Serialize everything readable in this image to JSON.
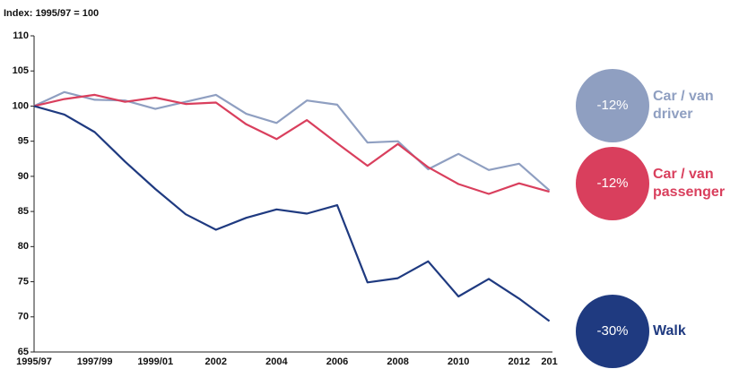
{
  "chart_data": {
    "type": "line",
    "y_axis_label": "Index: 1995/97 = 100",
    "categories": [
      "1995/97",
      null,
      "1997/99",
      null,
      "1999/01",
      null,
      "2002",
      null,
      "2004",
      null,
      "2006",
      null,
      "2008",
      null,
      "2010",
      null,
      "2012",
      "201"
    ],
    "ylim": [
      65,
      110
    ],
    "yticks": [
      65,
      70,
      75,
      80,
      85,
      90,
      95,
      100,
      105,
      110
    ],
    "grid": false,
    "series": [
      {
        "name": "Car / van driver",
        "color": "#8f9fc1",
        "change_label": "-12%",
        "values": [
          100,
          102,
          100.9,
          100.8,
          99.6,
          100.6,
          101.6,
          98.9,
          97.6,
          100.8,
          100.2,
          94.8,
          95,
          91,
          93.2,
          90.9,
          91.8,
          88
        ]
      },
      {
        "name": "Car / van passenger",
        "color": "#d93f5d",
        "change_label": "-12%",
        "values": [
          100,
          101,
          101.6,
          100.6,
          101.2,
          100.3,
          100.5,
          97.4,
          95.3,
          98,
          94.7,
          91.5,
          94.6,
          91.3,
          88.9,
          87.5,
          89,
          87.8
        ]
      },
      {
        "name": "Walk",
        "color": "#1f3a80",
        "change_label": "-30%",
        "values": [
          100,
          98.8,
          96.3,
          92.1,
          88.2,
          84.6,
          82.4,
          84.1,
          85.3,
          84.7,
          85.9,
          74.9,
          75.5,
          77.9,
          72.9,
          75.4,
          72.6,
          69.4
        ]
      }
    ]
  }
}
